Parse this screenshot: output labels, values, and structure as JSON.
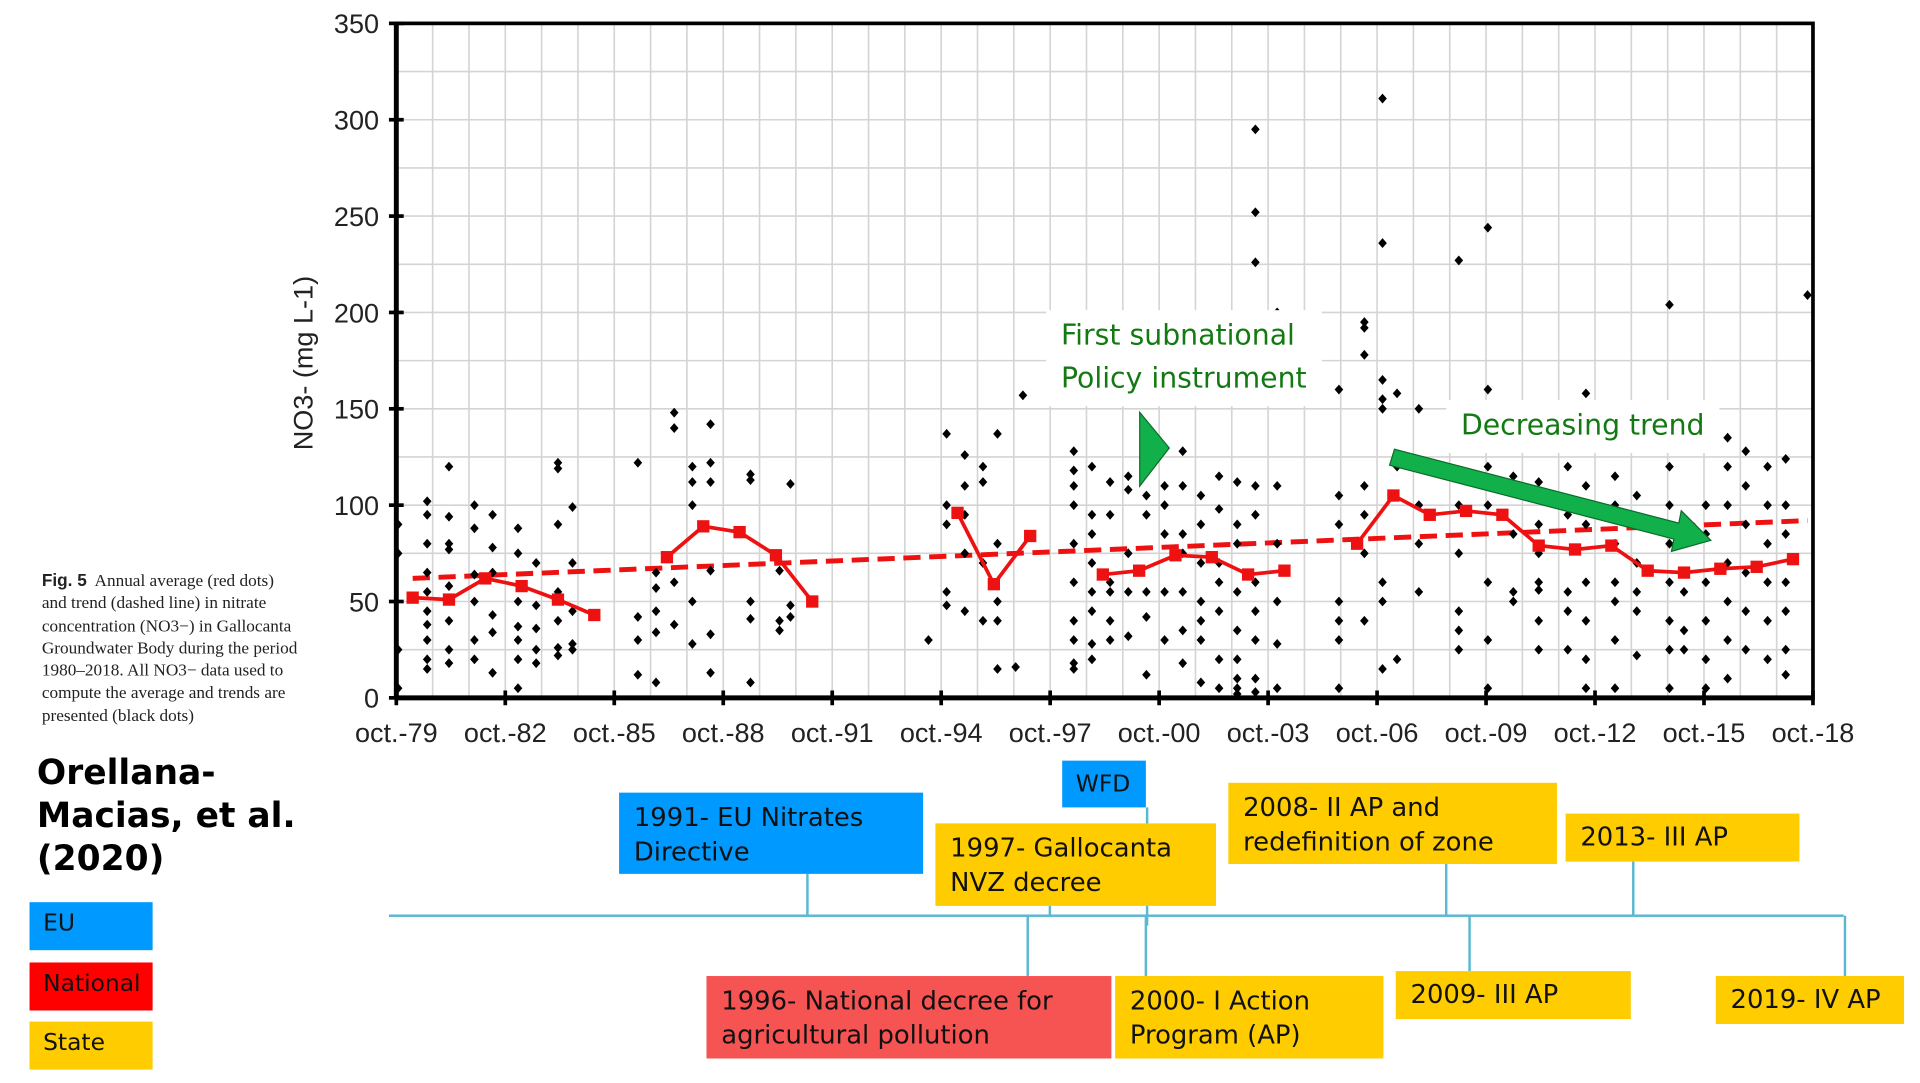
{
  "colors": {
    "eu": "#0099ff",
    "national": "#ff0000",
    "national_box": "#f65353",
    "state": "#ffcc00",
    "annotation": "#137a13",
    "arrow": "#12b04a",
    "average": "#ee1111",
    "timeline": "#5bb8d0"
  },
  "caption": {
    "label": "Fig. 5",
    "text": "Annual average (red dots) and trend (dashed line) in nitrate concentration (NO3−) in Gallocanta Groundwater Body during the period 1980–2018. All NO3− data used to compute the average and trends are presented (black dots)"
  },
  "author": "Orellana-Macias, et al. (2020)",
  "legend": [
    {
      "label": "EU",
      "color": "#0099ff"
    },
    {
      "label": "National",
      "color": "#ff0000"
    },
    {
      "label": "State",
      "color": "#ffcc00"
    }
  ],
  "annotations": {
    "subnational": "First subnational Policy instrument",
    "decreasing": "Decreasing trend"
  },
  "timeline": {
    "above": [
      {
        "label": "WFD",
        "type": "eu"
      },
      {
        "label": "1991- EU Nitrates Directive",
        "type": "eu"
      },
      {
        "label": "1997- Gallocanta NVZ decree",
        "type": "state"
      },
      {
        "label": "2008- II AP and redefinition of zone",
        "type": "state"
      },
      {
        "label": "2013- III AP",
        "type": "state"
      }
    ],
    "below": [
      {
        "label": "1996- National decree for agricultural pollution",
        "type": "national"
      },
      {
        "label": "2000- I Action Program (AP)",
        "type": "state"
      },
      {
        "label": "2009- III AP",
        "type": "state"
      },
      {
        "label": "2019- IV AP",
        "type": "state"
      }
    ]
  },
  "chart_data": {
    "type": "scatter",
    "ylabel": "NO3- (mg L-1)",
    "xlabel": "",
    "ylim": [
      0,
      350
    ],
    "xlim": [
      1979.75,
      2018.75
    ],
    "yticks": [
      "0",
      "50",
      "100",
      "150",
      "200",
      "250",
      "300",
      "350"
    ],
    "xticks": [
      "oct.-79",
      "oct.-82",
      "oct.-85",
      "oct.-88",
      "oct.-91",
      "oct.-94",
      "oct.-97",
      "oct.-00",
      "oct.-03",
      "oct.-06",
      "oct.-09",
      "oct.-12",
      "oct.-15",
      "oct.-18"
    ],
    "grid": true,
    "annual_average_segments": [
      [
        [
          1980.2,
          52
        ],
        [
          1981.2,
          51
        ],
        [
          1982.2,
          62
        ],
        [
          1983.2,
          58
        ],
        [
          1984.2,
          51
        ],
        [
          1985.2,
          43
        ]
      ],
      [
        [
          1987.2,
          73
        ],
        [
          1988.2,
          89
        ],
        [
          1989.2,
          86
        ],
        [
          1990.2,
          74
        ],
        [
          1991.2,
          50
        ]
      ],
      [
        [
          1995.2,
          96
        ],
        [
          1996.2,
          59
        ],
        [
          1997.2,
          84
        ]
      ],
      [
        [
          1999.2,
          64
        ],
        [
          2000.2,
          66
        ],
        [
          2001.2,
          74
        ],
        [
          2002.2,
          73
        ],
        [
          2003.2,
          64
        ],
        [
          2004.2,
          66
        ]
      ],
      [
        [
          2006.2,
          80
        ],
        [
          2007.2,
          105
        ],
        [
          2008.2,
          95
        ],
        [
          2009.2,
          97
        ],
        [
          2010.2,
          95
        ],
        [
          2011.2,
          79
        ],
        [
          2012.2,
          77
        ],
        [
          2013.2,
          79
        ],
        [
          2014.2,
          66
        ],
        [
          2015.2,
          65
        ],
        [
          2016.2,
          67
        ],
        [
          2017.2,
          68
        ],
        [
          2018.2,
          72
        ]
      ]
    ],
    "trend": [
      [
        1980.2,
        62
      ],
      [
        2018.6,
        92
      ]
    ],
    "samples": [
      {
        "x": 1979.8,
        "values": [
          90,
          75,
          25,
          5
        ]
      },
      {
        "x": 1980.6,
        "values": [
          102,
          95,
          80,
          65,
          55,
          45,
          38,
          30,
          20,
          15
        ]
      },
      {
        "x": 1981.2,
        "values": [
          120,
          94,
          80,
          77,
          58,
          40,
          25,
          18
        ]
      },
      {
        "x": 1981.9,
        "values": [
          100,
          88,
          64,
          50,
          30,
          20
        ]
      },
      {
        "x": 1982.4,
        "values": [
          95,
          78,
          65,
          43,
          34,
          13
        ]
      },
      {
        "x": 1983.1,
        "values": [
          88,
          75,
          50,
          37,
          30,
          20,
          5
        ]
      },
      {
        "x": 1983.6,
        "values": [
          70,
          48,
          36,
          25,
          18
        ]
      },
      {
        "x": 1984.2,
        "values": [
          122,
          119,
          90,
          55,
          40,
          26,
          22
        ]
      },
      {
        "x": 1984.6,
        "values": [
          99,
          70,
          45,
          28,
          25
        ]
      },
      {
        "x": 1986.4,
        "values": [
          122,
          42,
          30,
          12
        ]
      },
      {
        "x": 1986.9,
        "values": [
          65,
          57,
          45,
          34,
          8
        ]
      },
      {
        "x": 1987.4,
        "values": [
          148,
          140,
          60,
          38
        ]
      },
      {
        "x": 1987.9,
        "values": [
          120,
          112,
          100,
          50,
          28
        ]
      },
      {
        "x": 1988.4,
        "values": [
          142,
          122,
          112,
          66,
          33,
          13
        ]
      },
      {
        "x": 1989.5,
        "values": [
          116,
          113,
          50,
          41,
          8
        ]
      },
      {
        "x": 1990.3,
        "values": [
          66,
          40,
          35
        ]
      },
      {
        "x": 1990.6,
        "values": [
          111,
          48,
          42
        ]
      },
      {
        "x": 1994.4,
        "values": [
          30
        ]
      },
      {
        "x": 1994.9,
        "values": [
          137,
          100,
          90,
          55,
          48
        ]
      },
      {
        "x": 1995.4,
        "values": [
          126,
          110,
          95,
          75,
          45
        ]
      },
      {
        "x": 1995.9,
        "values": [
          120,
          112,
          70,
          40
        ]
      },
      {
        "x": 1996.3,
        "values": [
          137,
          80,
          50,
          40,
          15
        ]
      },
      {
        "x": 1996.8,
        "values": [
          16
        ]
      },
      {
        "x": 1997.0,
        "values": [
          157
        ]
      },
      {
        "x": 1998.4,
        "values": [
          128,
          118,
          110,
          100,
          80,
          60,
          40,
          30,
          18,
          15
        ]
      },
      {
        "x": 1998.9,
        "values": [
          120,
          95,
          85,
          70,
          55,
          45,
          28,
          20
        ]
      },
      {
        "x": 1999.4,
        "values": [
          112,
          95,
          60,
          55,
          40,
          30
        ]
      },
      {
        "x": 1999.9,
        "values": [
          115,
          108,
          75,
          55,
          32
        ]
      },
      {
        "x": 2000.4,
        "values": [
          105,
          95,
          55,
          42,
          12
        ]
      },
      {
        "x": 2000.9,
        "values": [
          110,
          100,
          85,
          55,
          30
        ]
      },
      {
        "x": 2001.4,
        "values": [
          128,
          110,
          85,
          75,
          55,
          35,
          18
        ]
      },
      {
        "x": 2001.9,
        "values": [
          105,
          90,
          70,
          50,
          40,
          30,
          8
        ]
      },
      {
        "x": 2002.4,
        "values": [
          115,
          98,
          70,
          60,
          45,
          20,
          5
        ]
      },
      {
        "x": 2002.9,
        "values": [
          112,
          90,
          80,
          55,
          35,
          20,
          10,
          5,
          2
        ]
      },
      {
        "x": 2003.4,
        "values": [
          295,
          252,
          226,
          110,
          95,
          60,
          45,
          30,
          10,
          3
        ]
      },
      {
        "x": 2004.0,
        "values": [
          200,
          110,
          80,
          50,
          28,
          5
        ]
      },
      {
        "x": 2005.7,
        "values": [
          160,
          105,
          90,
          50,
          40,
          30,
          5
        ]
      },
      {
        "x": 2006.4,
        "values": [
          195,
          192,
          178,
          110,
          95,
          75,
          40
        ]
      },
      {
        "x": 2006.9,
        "values": [
          311,
          236,
          165,
          155,
          150,
          60,
          50,
          15
        ]
      },
      {
        "x": 2007.3,
        "values": [
          158,
          120,
          20
        ]
      },
      {
        "x": 2007.9,
        "values": [
          150,
          100,
          80,
          55
        ]
      },
      {
        "x": 2009.0,
        "values": [
          227,
          130,
          100,
          75,
          45,
          35,
          25
        ]
      },
      {
        "x": 2009.8,
        "values": [
          244,
          160,
          120,
          100,
          60,
          30,
          5
        ]
      },
      {
        "x": 2010.5,
        "values": [
          115,
          85,
          55,
          50
        ]
      },
      {
        "x": 2011.2,
        "values": [
          112,
          90,
          75,
          60,
          56,
          40,
          25
        ]
      },
      {
        "x": 2012.0,
        "values": [
          150,
          120,
          95,
          55,
          45,
          25
        ]
      },
      {
        "x": 2012.5,
        "values": [
          158,
          110,
          90,
          60,
          40,
          20,
          5
        ]
      },
      {
        "x": 2013.3,
        "values": [
          115,
          100,
          80,
          60,
          50,
          30,
          5
        ]
      },
      {
        "x": 2013.9,
        "values": [
          130,
          105,
          70,
          55,
          45,
          22
        ]
      },
      {
        "x": 2014.8,
        "values": [
          204,
          120,
          100,
          80,
          60,
          40,
          25,
          5
        ]
      },
      {
        "x": 2015.2,
        "values": [
          135,
          130,
          90,
          55,
          35,
          25
        ]
      },
      {
        "x": 2015.8,
        "values": [
          130,
          100,
          85,
          60,
          40,
          20,
          5
        ]
      },
      {
        "x": 2016.4,
        "values": [
          135,
          120,
          100,
          70,
          50,
          30,
          10
        ]
      },
      {
        "x": 2016.9,
        "values": [
          128,
          110,
          90,
          65,
          45,
          25
        ]
      },
      {
        "x": 2017.5,
        "values": [
          120,
          100,
          80,
          60,
          40,
          20
        ]
      },
      {
        "x": 2018.0,
        "values": [
          124,
          100,
          85,
          60,
          45,
          25,
          12
        ]
      },
      {
        "x": 2018.6,
        "values": [
          209
        ]
      }
    ]
  }
}
